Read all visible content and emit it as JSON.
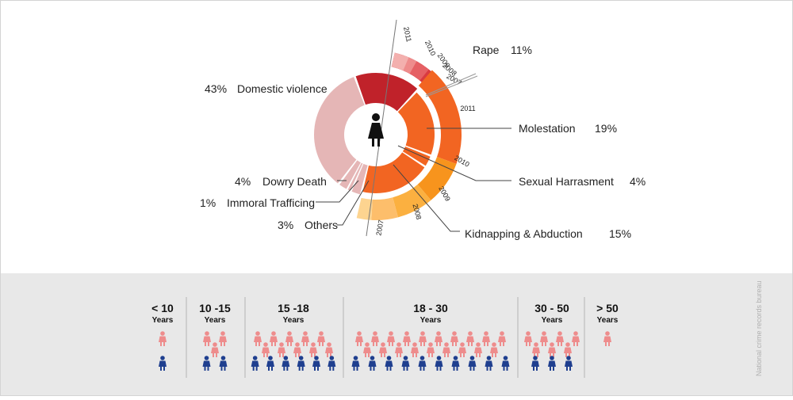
{
  "chart_data": {
    "type": "pie",
    "center_icon": "female-icon",
    "categories": [
      {
        "key": "domestic",
        "label": "Domestic violence",
        "percent": "43%",
        "value": 43,
        "color": "#e5b6b6"
      },
      {
        "key": "rape",
        "label": "Rape",
        "percent": "11%",
        "value": 11,
        "color": "#c0222a"
      },
      {
        "key": "molestation",
        "label": "Molestation",
        "percent": "19%",
        "value": 19,
        "color": "#f26522"
      },
      {
        "key": "harassment",
        "label": "Sexual Harrasment",
        "percent": "4%",
        "value": 4,
        "color": "#f26522"
      },
      {
        "key": "kidnapping",
        "label": "Kidnapping & Abduction",
        "percent": "15%",
        "value": 15,
        "color": "#f26522"
      },
      {
        "key": "dowry",
        "label": "Dowry Death",
        "percent": "4%",
        "value": 4,
        "color": "#e5b6b6"
      },
      {
        "key": "trafficking",
        "label": "Immoral Trafficing",
        "percent": "1%",
        "value": 1,
        "color": "#e5b6b6"
      },
      {
        "key": "others",
        "label": "Others",
        "percent": "3%",
        "value": 3,
        "color": "#e5b6b6"
      }
    ],
    "rape_years": [
      {
        "year": "2011",
        "color": "#c0222a"
      },
      {
        "year": "2010",
        "color": "#d93a40"
      },
      {
        "year": "2009",
        "color": "#e56064"
      },
      {
        "year": "2008",
        "color": "#ee8c8c"
      },
      {
        "year": "2007",
        "color": "#f3b0ae"
      }
    ],
    "orange_years": [
      {
        "year": "2011",
        "color": "#f26522"
      },
      {
        "year": "2010",
        "color": "#f7941d"
      },
      {
        "year": "2009",
        "color": "#fbb040"
      },
      {
        "year": "2008",
        "color": "#fdbe6b"
      },
      {
        "year": "2007",
        "color": "#fdd490"
      }
    ]
  },
  "age_groups": [
    {
      "label": "< 10",
      "sub": "Years",
      "pink": 1,
      "blue": 1
    },
    {
      "label": "10 -15",
      "sub": "Years",
      "pink": 3,
      "blue": 2
    },
    {
      "label": "15 -18",
      "sub": "Years",
      "pink": 10,
      "blue": 6
    },
    {
      "label": "18 - 30",
      "sub": "Years",
      "pink": 19,
      "blue": 10
    },
    {
      "label": "30 - 50",
      "sub": "Years",
      "pink": 7,
      "blue": 3
    },
    {
      "label": "> 50",
      "sub": "Years",
      "pink": 1,
      "blue": 0
    }
  ],
  "colors": {
    "pink": "#ee8c8c",
    "blue": "#1f3f8f",
    "panel": "#e8e8e8",
    "divider": "#b5b5b5"
  },
  "source": "National crime records bureau"
}
